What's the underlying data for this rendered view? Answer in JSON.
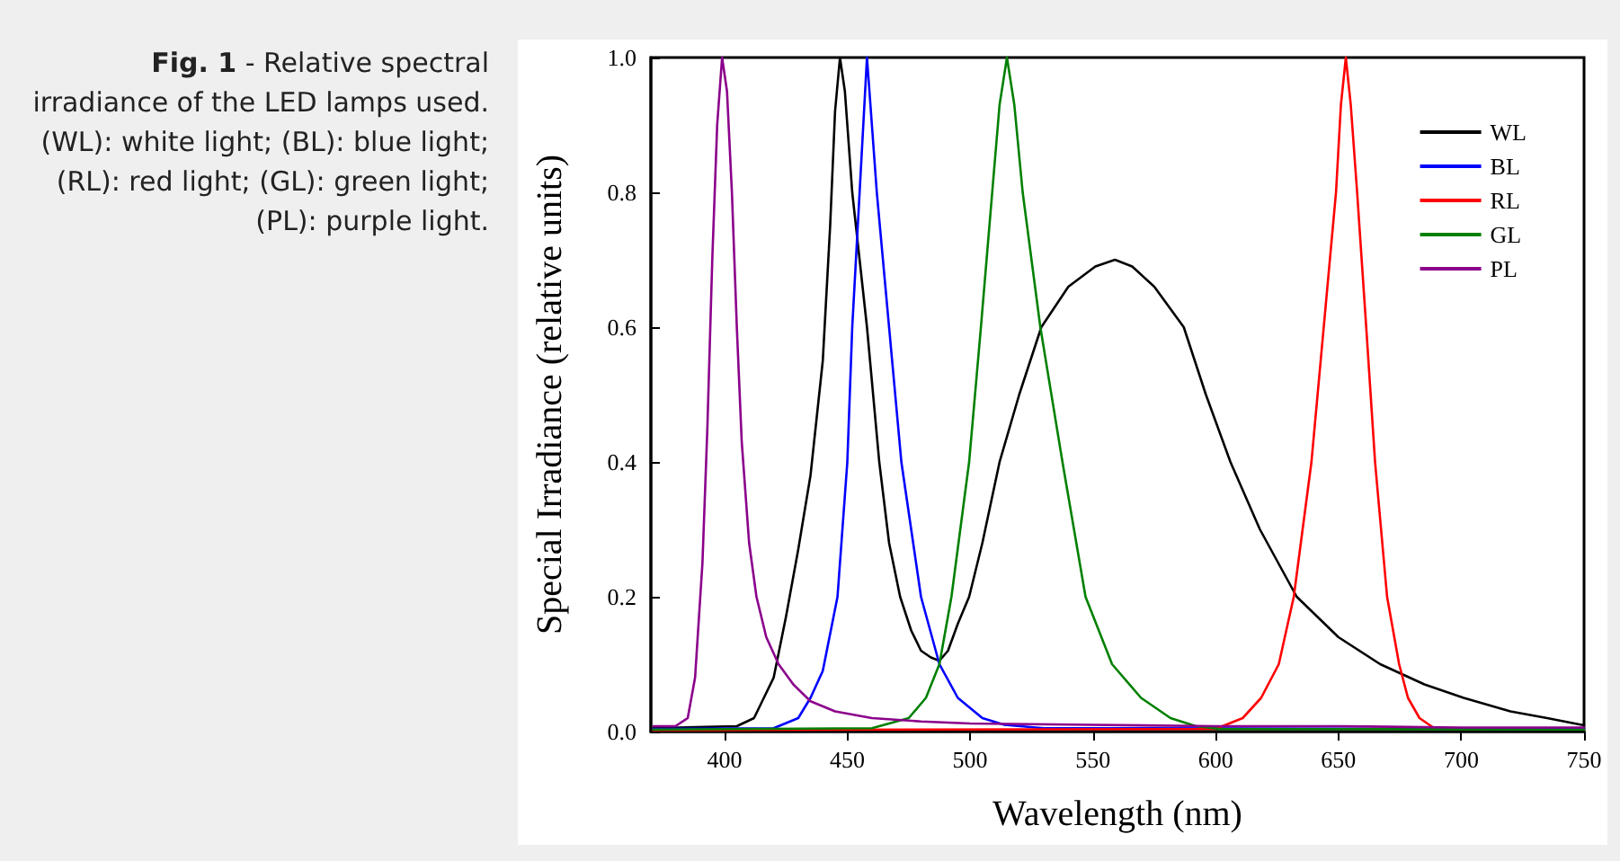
{
  "chart_data": {
    "type": "line",
    "title": "Fig. 1 - Relative spectral irradiance of the LED lamps used. (WL): white light; (BL): blue light; (RL): red light; (GL): green light; (PL): purple light.",
    "xlabel": "Wavelength (nm)",
    "ylabel": "Special Irradiance (relative units)",
    "xlim": [
      370,
      750
    ],
    "xticks": [
      400,
      450,
      500,
      550,
      600,
      650,
      700,
      750
    ],
    "ylim": [
      0,
      1
    ],
    "yticks": [
      {
        "value": 0,
        "label": "0.0"
      },
      {
        "value": 0.2,
        "label": "0.2"
      },
      {
        "value": 0.4,
        "label": "0.4"
      },
      {
        "value": 0.6,
        "label": "0.6"
      },
      {
        "value": 0.8,
        "label": "0.8"
      },
      {
        "value": 1,
        "label": "1.0"
      }
    ],
    "grid": false,
    "legend": "top right",
    "marker": "none",
    "line_style": "solid",
    "series": [
      {
        "name": "WL",
        "color": "#000000",
        "x": [
          371,
          405,
          412,
          416,
          420,
          425,
          430,
          435,
          440,
          443,
          445,
          447,
          449,
          452,
          455,
          458,
          463,
          467,
          471.5,
          476,
          480,
          484,
          487.5,
          491,
          495,
          499.6,
          505,
          512,
          520,
          529,
          540,
          551,
          559,
          566,
          575,
          587,
          596,
          606,
          618,
          633,
          650,
          667,
          685,
          701,
          720,
          735,
          749,
          750
        ],
        "values": [
          0.005,
          0.008,
          0.02,
          0.05,
          0.08,
          0.17,
          0.27,
          0.38,
          0.55,
          0.75,
          0.92,
          1.0,
          0.95,
          0.8,
          0.7,
          0.6,
          0.4,
          0.28,
          0.2,
          0.15,
          0.12,
          0.11,
          0.105,
          0.12,
          0.16,
          0.2,
          0.28,
          0.4,
          0.5,
          0.6,
          0.66,
          0.69,
          0.7,
          0.69,
          0.66,
          0.6,
          0.5,
          0.4,
          0.3,
          0.2,
          0.14,
          0.1,
          0.07,
          0.05,
          0.03,
          0.02,
          0.01,
          0.01
        ]
      },
      {
        "name": "BL",
        "color": "#0000ff",
        "x": [
          371,
          420,
          430,
          435,
          440,
          446,
          450,
          452,
          455,
          458,
          462,
          467,
          472,
          480,
          487.5,
          495,
          505,
          514,
          530,
          750
        ],
        "values": [
          0.004,
          0.005,
          0.02,
          0.05,
          0.09,
          0.2,
          0.4,
          0.6,
          0.8,
          1.0,
          0.8,
          0.6,
          0.4,
          0.2,
          0.1,
          0.05,
          0.02,
          0.01,
          0.005,
          0.004
        ]
      },
      {
        "name": "RL",
        "color": "#ff0000",
        "x": [
          371,
          600,
          611,
          618.5,
          625.7,
          631.8,
          639,
          644,
          649,
          651,
          653,
          655,
          657.6,
          661.3,
          664.9,
          669.8,
          674.7,
          678.3,
          683,
          689
        ],
        "values": [
          0.002,
          0.004,
          0.02,
          0.05,
          0.1,
          0.2,
          0.4,
          0.6,
          0.8,
          0.93,
          1.0,
          0.93,
          0.8,
          0.6,
          0.4,
          0.2,
          0.1,
          0.05,
          0.02,
          0.005
        ]
      },
      {
        "name": "GL",
        "color": "#008000",
        "x": [
          371,
          460,
          475,
          482,
          487.5,
          492.4,
          499.6,
          504.4,
          509,
          512,
          515,
          518,
          521.4,
          528.6,
          537.6,
          547,
          557.8,
          569.6,
          581.6,
          592,
          601.5,
          750
        ],
        "values": [
          0.003,
          0.005,
          0.02,
          0.05,
          0.1,
          0.2,
          0.4,
          0.6,
          0.8,
          0.93,
          1.0,
          0.93,
          0.8,
          0.6,
          0.4,
          0.2,
          0.1,
          0.05,
          0.02,
          0.008,
          0.004,
          0.003
        ]
      },
      {
        "name": "PL",
        "color": "#8b008b",
        "x": [
          371,
          380,
          385,
          388,
          391,
          393,
          395,
          397,
          399,
          401,
          403,
          405,
          407,
          410,
          413,
          417,
          422,
          428,
          435,
          445,
          460,
          480,
          500,
          550,
          600,
          650,
          700,
          750
        ],
        "values": [
          0.008,
          0.008,
          0.02,
          0.08,
          0.25,
          0.45,
          0.7,
          0.9,
          1.0,
          0.95,
          0.8,
          0.6,
          0.43,
          0.28,
          0.2,
          0.14,
          0.1,
          0.07,
          0.045,
          0.03,
          0.02,
          0.015,
          0.012,
          0.01,
          0.008,
          0.008,
          0.006,
          0.006
        ]
      }
    ]
  }
}
